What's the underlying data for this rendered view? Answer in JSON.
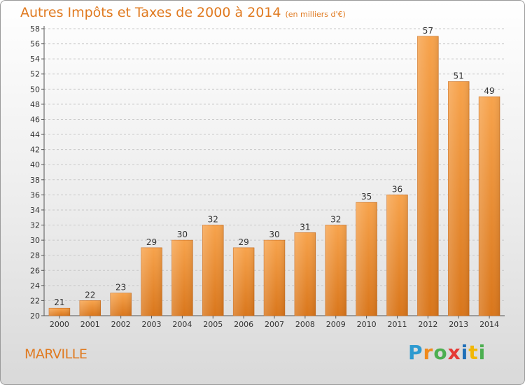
{
  "header": {
    "title": "Autres Impôts et Taxes de 2000 à 2014",
    "subtitle": "(en milliers d'€)"
  },
  "footer": {
    "place": "MARVILLE",
    "logo": {
      "letters": [
        "P",
        "r",
        "o",
        "x",
        "i",
        "t",
        "i"
      ],
      "colors": [
        "#2e9ad0",
        "#f08a1c",
        "#4caf50",
        "#e53935",
        "#1f6fb8",
        "#f2b705",
        "#4caf50"
      ]
    }
  },
  "chart_data": {
    "type": "bar",
    "categories": [
      "2000",
      "2001",
      "2002",
      "2003",
      "2004",
      "2005",
      "2006",
      "2007",
      "2008",
      "2009",
      "2010",
      "2011",
      "2012",
      "2013",
      "2014"
    ],
    "values": [
      21,
      22,
      23,
      29,
      30,
      32,
      29,
      30,
      31,
      32,
      35,
      36,
      57,
      51,
      49
    ],
    "ylim": [
      20,
      58
    ],
    "ytick_step": 2,
    "grid": true,
    "bar_color_top": "#f7a34c",
    "bar_color_bottom": "#d9761b"
  }
}
